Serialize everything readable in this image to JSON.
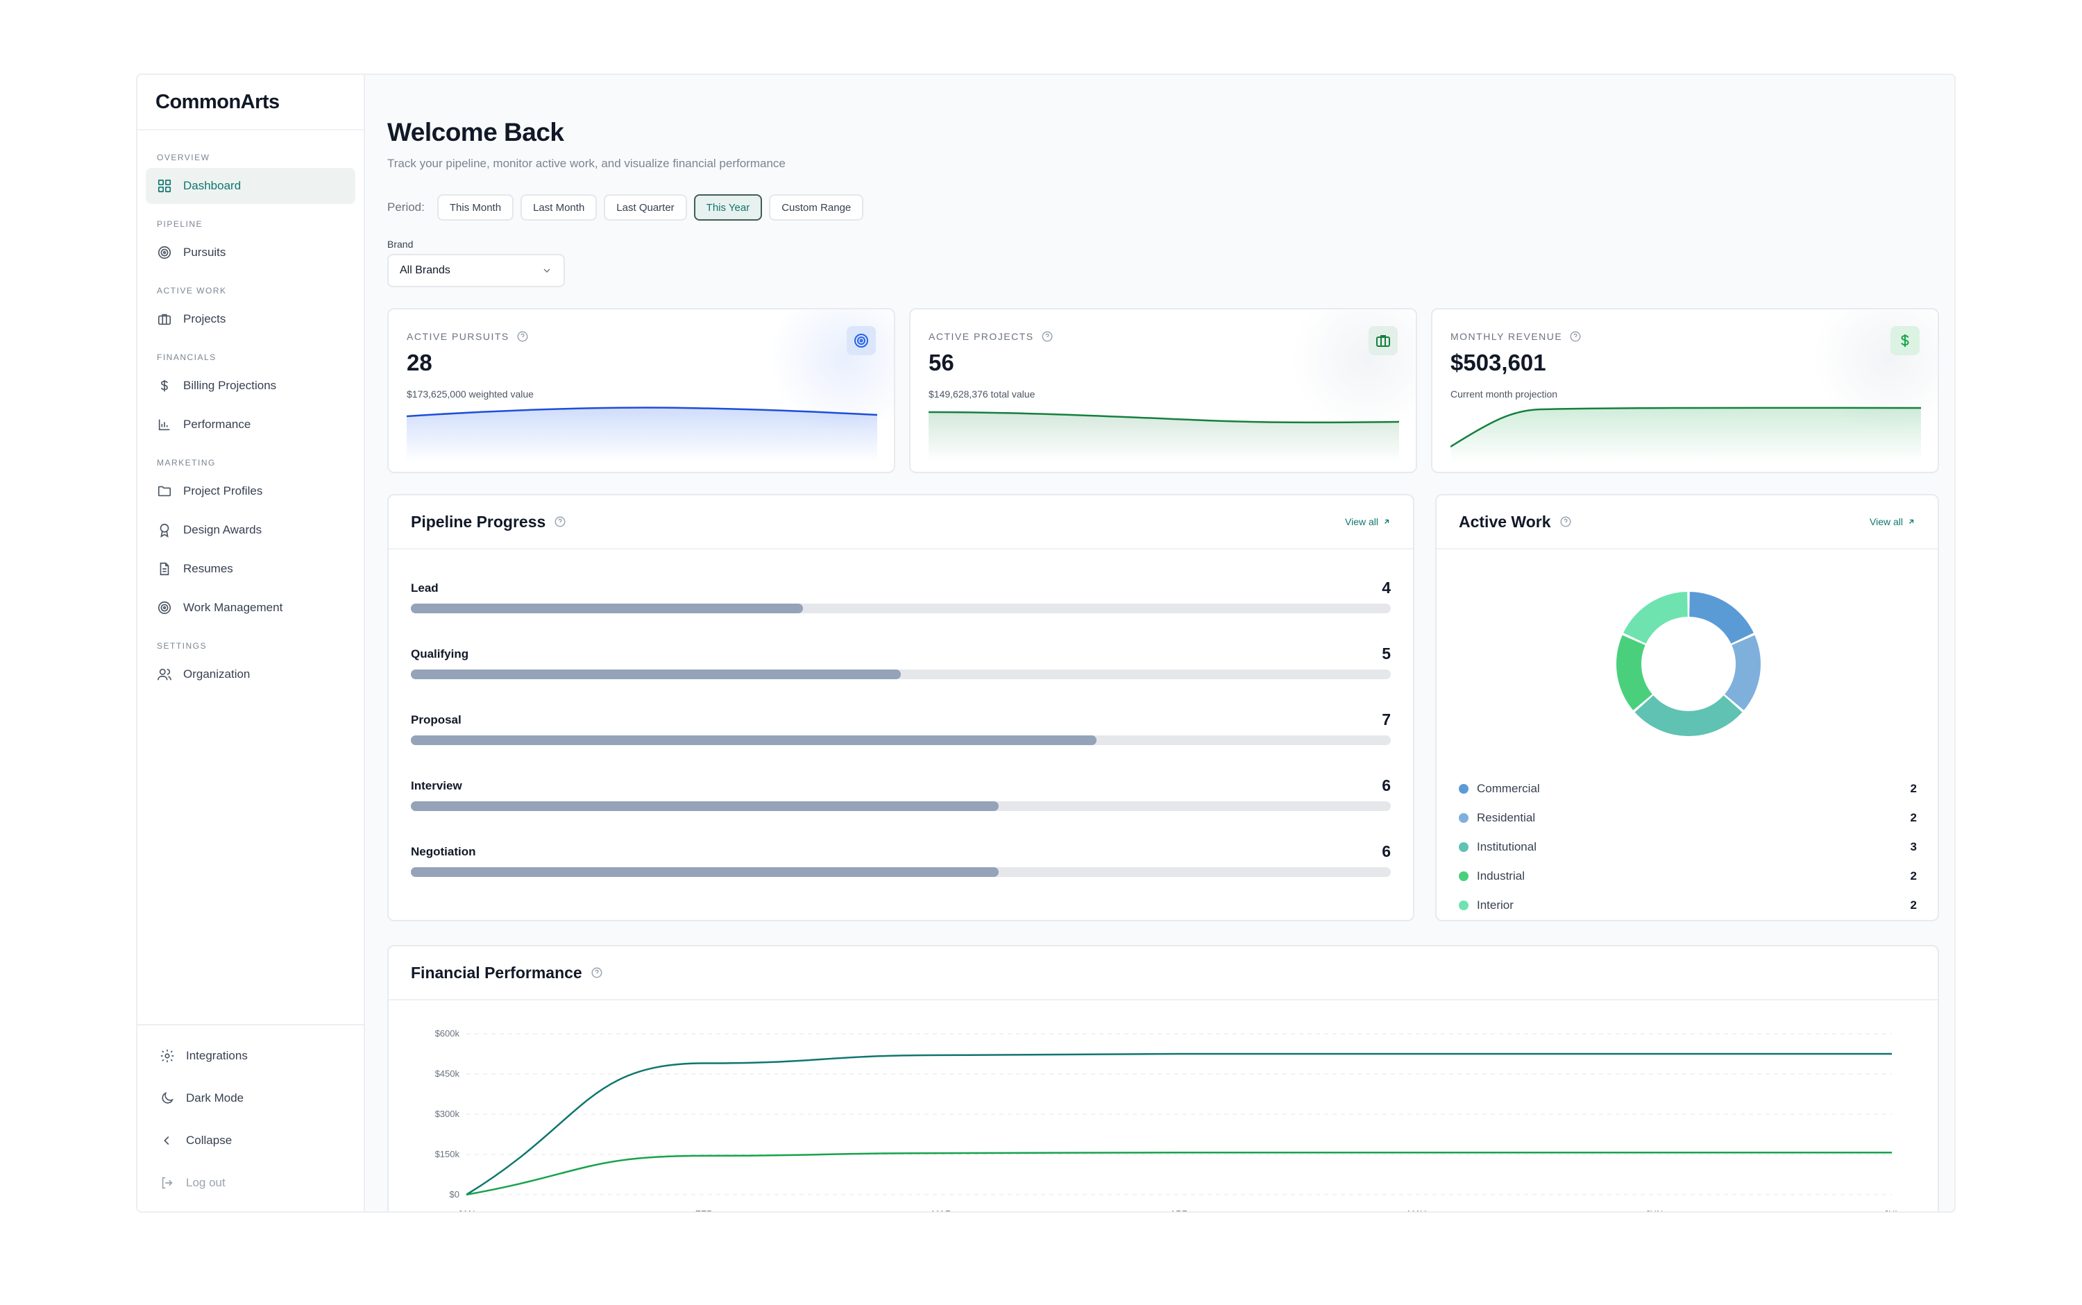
{
  "app": {
    "name": "CommonArts"
  },
  "sidebar": {
    "sections": [
      {
        "label": "OVERVIEW",
        "items": [
          {
            "label": "Dashboard",
            "icon": "grid-icon",
            "active": true
          }
        ]
      },
      {
        "label": "PIPELINE",
        "items": [
          {
            "label": "Pursuits",
            "icon": "target-icon"
          }
        ]
      },
      {
        "label": "ACTIVE WORK",
        "items": [
          {
            "label": "Projects",
            "icon": "briefcase-icon"
          }
        ]
      },
      {
        "label": "FINANCIALS",
        "items": [
          {
            "label": "Billing Projections",
            "icon": "dollar-icon"
          },
          {
            "label": "Performance",
            "icon": "bar-chart-icon"
          }
        ]
      },
      {
        "label": "MARKETING",
        "items": [
          {
            "label": "Project Profiles",
            "icon": "folder-icon"
          },
          {
            "label": "Design Awards",
            "icon": "award-icon"
          },
          {
            "label": "Resumes",
            "icon": "file-text-icon"
          },
          {
            "label": "Work Management",
            "icon": "target-icon"
          }
        ]
      },
      {
        "label": "SETTINGS",
        "items": [
          {
            "label": "Organization",
            "icon": "users-icon"
          }
        ]
      }
    ],
    "bottom": {
      "integrations": "Integrations",
      "dark_mode": "Dark Mode",
      "collapse": "Collapse",
      "logout": "Log out"
    }
  },
  "header": {
    "title": "Welcome Back",
    "subtitle": "Track your pipeline, monitor active work, and visualize financial performance",
    "period_label": "Period:",
    "periods": [
      "This Month",
      "Last Month",
      "Last Quarter",
      "This Year",
      "Custom Range"
    ],
    "active_period": "This Year",
    "brand_label": "Brand",
    "brand_value": "All Brands"
  },
  "stats": [
    {
      "label": "ACTIVE PURSUITS",
      "value": "28",
      "caption": "$173,625,000 weighted value",
      "icon": "target-icon",
      "color": "#2563eb"
    },
    {
      "label": "ACTIVE PROJECTS",
      "value": "56",
      "caption": "$149,628,376 total value",
      "icon": "briefcase-icon",
      "color": "#15803d"
    },
    {
      "label": "MONTHLY REVENUE",
      "value": "$503,601",
      "caption": "Current month projection",
      "icon": "dollar-icon",
      "color": "#16a34a"
    }
  ],
  "pipeline": {
    "title": "Pipeline Progress",
    "view_all": "View all",
    "max": 10,
    "stages": [
      {
        "name": "Lead",
        "count": 4,
        "progress": 0.4
      },
      {
        "name": "Qualifying",
        "count": 5,
        "progress": 0.5
      },
      {
        "name": "Proposal",
        "count": 7,
        "progress": 0.7
      },
      {
        "name": "Interview",
        "count": 6,
        "progress": 0.6
      },
      {
        "name": "Negotiation",
        "count": 6,
        "progress": 0.6
      }
    ]
  },
  "active_work": {
    "title": "Active Work",
    "view_all": "View all",
    "segments": [
      {
        "name": "Commercial",
        "value": 2,
        "color": "#5b9bd5"
      },
      {
        "name": "Residential",
        "value": 2,
        "color": "#7fb0dc"
      },
      {
        "name": "Institutional",
        "value": 3,
        "color": "#5fc2b2"
      },
      {
        "name": "Industrial",
        "value": 2,
        "color": "#4ad07d"
      },
      {
        "name": "Interior",
        "value": 2,
        "color": "#6ee3b0"
      }
    ]
  },
  "financial": {
    "title": "Financial Performance"
  },
  "chart_data": {
    "type": "line",
    "x": [
      "JAN",
      "FEB",
      "MAR",
      "APR",
      "MAY",
      "JUN",
      "JUL"
    ],
    "series": [
      {
        "values": [
          0,
          490000,
          520000,
          525000,
          525000,
          525000,
          525000
        ],
        "color": "#0f766e"
      },
      {
        "values": [
          0,
          145000,
          155000,
          157000,
          157000,
          157000,
          157000
        ],
        "color": "#16a34a"
      }
    ],
    "yticks": [
      "$0",
      "$150k",
      "$300k",
      "$450k",
      "$600k"
    ],
    "ylim": [
      0,
      600000
    ],
    "grid": true
  }
}
